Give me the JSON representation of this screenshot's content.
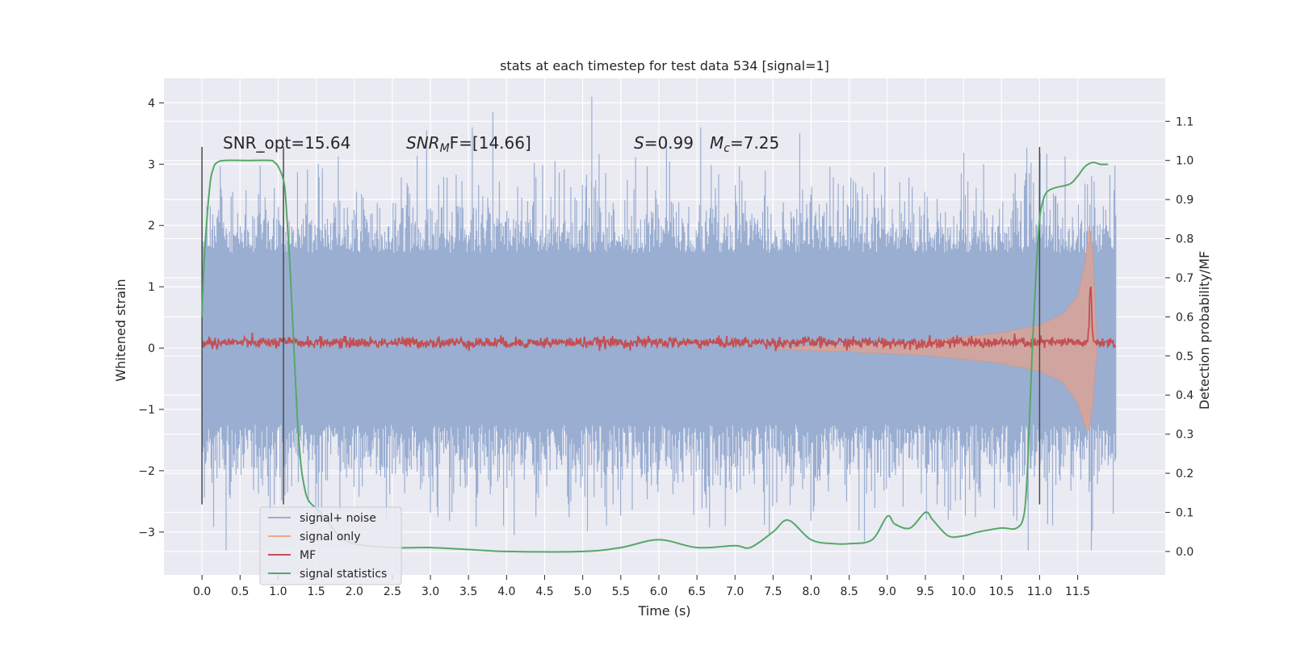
{
  "chart_data": {
    "type": "line",
    "title": "stats at each timestep for test data 534 [signal=1]",
    "xlabel": "Time (s)",
    "ylabel": "Whitened strain",
    "ylabel_right": "Detection probability/MF",
    "xlim": [
      -0.5,
      12.65
    ],
    "ylim": [
      -3.7,
      4.4
    ],
    "ylim_right": [
      -0.06,
      1.21
    ],
    "x_ticks": [
      0.0,
      0.5,
      1.0,
      1.5,
      2.0,
      2.5,
      3.0,
      3.5,
      4.0,
      4.5,
      5.0,
      5.5,
      6.0,
      6.5,
      7.0,
      7.5,
      8.0,
      8.5,
      9.0,
      9.5,
      10.0,
      10.5,
      11.0,
      11.5
    ],
    "x_tick_labels": [
      "0.0",
      "0.5",
      "1.0",
      "1.5",
      "2.0",
      "2.5",
      "3.0",
      "3.5",
      "4.0",
      "4.5",
      "5.0",
      "5.5",
      "6.0",
      "6.5",
      "7.0",
      "7.5",
      "8.0",
      "8.5",
      "9.0",
      "9.5",
      "10.0",
      "10.5",
      "11.0",
      "11.5"
    ],
    "y_ticks": [
      -3,
      -2,
      -1,
      0,
      1,
      2,
      3,
      4
    ],
    "y_tick_labels": [
      "−3",
      "−2",
      "−1",
      "0",
      "1",
      "2",
      "3",
      "4"
    ],
    "y_ticks_right": [
      0.0,
      0.1,
      0.2,
      0.3,
      0.4,
      0.5,
      0.6,
      0.7,
      0.8,
      0.9,
      1.0,
      1.1
    ],
    "y_tick_labels_right": [
      "0.0",
      "0.1",
      "0.2",
      "0.3",
      "0.4",
      "0.5",
      "0.6",
      "0.7",
      "0.8",
      "0.9",
      "1.0",
      "1.1"
    ],
    "grid": true,
    "legend_position": "lower-left",
    "annotations": [
      "SNR_opt=15.64",
      "SNR",
      "M",
      "F=[14.66]",
      "S",
      "=0.99",
      "M",
      "c",
      "=7.25"
    ],
    "vlines_x": [
      0.0,
      1.07,
      11.0
    ],
    "series": [
      {
        "name": "signal+ noise",
        "color": "#4c72b0",
        "kind": "noise-band",
        "x_range": [
          0.0,
          12.0
        ],
        "core_range": [
          -1.25,
          1.55
        ],
        "max_positive_excursion": 4.1,
        "max_negative_excursion": -3.3
      },
      {
        "name": "signal only",
        "color": "#dd8452",
        "kind": "chirp-envelope",
        "x": [
          7.5,
          8.5,
          9.5,
          10.0,
          10.5,
          11.0,
          11.3,
          11.5,
          11.6,
          11.65,
          11.7,
          11.75
        ],
        "upper": [
          0.02,
          0.06,
          0.12,
          0.18,
          0.25,
          0.38,
          0.55,
          0.85,
          1.4,
          2.0,
          1.6,
          0.2
        ],
        "lower": [
          -0.02,
          -0.06,
          -0.12,
          -0.18,
          -0.25,
          -0.38,
          -0.55,
          -0.9,
          -1.3,
          -1.35,
          -0.9,
          -0.1
        ]
      },
      {
        "name": "MF",
        "color": "#c44e52",
        "kind": "noisy-line",
        "x_range": [
          0.0,
          12.0
        ],
        "baseline": 0.09,
        "spike": {
          "x": 11.67,
          "y": 1.0
        }
      },
      {
        "name": "signal statistics",
        "color": "#55a868",
        "axis": "right",
        "x": [
          0.0,
          0.03,
          0.1,
          0.15,
          0.2,
          0.3,
          0.6,
          0.9,
          0.95,
          1.0,
          1.07,
          1.1,
          1.15,
          1.2,
          1.25,
          1.3,
          1.35,
          1.4,
          1.5,
          1.6,
          1.8,
          2.0,
          2.5,
          3.0,
          3.5,
          4.0,
          5.0,
          5.5,
          6.0,
          6.5,
          7.0,
          7.2,
          7.5,
          7.7,
          8.0,
          8.3,
          8.5,
          8.8,
          9.0,
          9.1,
          9.3,
          9.5,
          9.6,
          9.8,
          10.0,
          10.2,
          10.5,
          10.7,
          10.8,
          10.85,
          10.9,
          10.95,
          11.0,
          11.05,
          11.1,
          11.2,
          11.4,
          11.5,
          11.6,
          11.7,
          11.8,
          11.9
        ],
        "values": [
          0.6,
          0.75,
          0.93,
          0.98,
          0.995,
          1.0,
          1.0,
          1.0,
          0.995,
          0.985,
          0.95,
          0.9,
          0.75,
          0.55,
          0.35,
          0.22,
          0.16,
          0.13,
          0.11,
          0.09,
          0.04,
          0.02,
          0.01,
          0.01,
          0.005,
          0.0,
          0.0,
          0.01,
          0.03,
          0.01,
          0.015,
          0.01,
          0.05,
          0.08,
          0.03,
          0.02,
          0.02,
          0.03,
          0.09,
          0.07,
          0.06,
          0.1,
          0.08,
          0.04,
          0.04,
          0.05,
          0.06,
          0.06,
          0.1,
          0.25,
          0.5,
          0.7,
          0.85,
          0.9,
          0.92,
          0.93,
          0.94,
          0.96,
          0.985,
          0.995,
          0.99,
          0.99
        ]
      }
    ]
  }
}
